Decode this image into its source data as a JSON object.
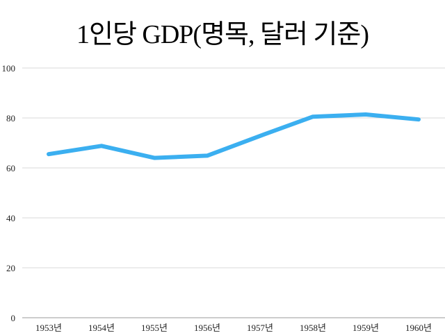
{
  "chart_data": {
    "type": "line",
    "title": "1인당 GDP(명목, 달러 기준)",
    "xlabel": "",
    "ylabel": "",
    "categories": [
      "1953년",
      "1954년",
      "1955년",
      "1956년",
      "1957년",
      "1958년",
      "1959년",
      "1960년"
    ],
    "series": [
      {
        "name": "1인당 GDP",
        "values": [
          65.5,
          68.8,
          64.0,
          64.9,
          72.8,
          80.5,
          81.4,
          79.4
        ],
        "color": "#3BAFF0"
      }
    ],
    "ylim": [
      0,
      100
    ],
    "yticks": [
      0,
      20,
      40,
      60,
      80,
      100
    ],
    "grid": true,
    "legend": "none"
  }
}
